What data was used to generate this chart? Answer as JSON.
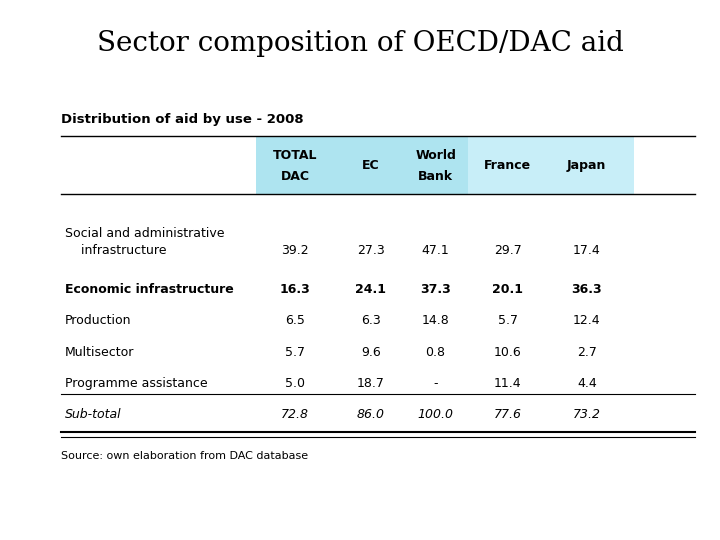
{
  "title": "Sector composition of OECD/DAC aid",
  "subtitle": "Distribution of aid by use - 2008",
  "source": "Source: own elaboration from DAC database",
  "col_headers_line1": [
    "TOTAL",
    "EC",
    "World",
    "France",
    "Japan"
  ],
  "col_headers_line2": [
    "DAC",
    "",
    "Bank",
    "",
    ""
  ],
  "rows": [
    {
      "label_line1": "Social and administrative",
      "label_line2": "    infrastructure",
      "values": [
        "39.2",
        "27.3",
        "47.1",
        "29.7",
        "17.4"
      ],
      "bold": false,
      "italic": false,
      "extra_space_above": true
    },
    {
      "label_line1": "Economic infrastructure",
      "label_line2": "",
      "values": [
        "16.3",
        "24.1",
        "37.3",
        "20.1",
        "36.3"
      ],
      "bold": true,
      "italic": false,
      "extra_space_above": true
    },
    {
      "label_line1": "Production",
      "label_line2": "",
      "values": [
        "6.5",
        "6.3",
        "14.8",
        "5.7",
        "12.4"
      ],
      "bold": false,
      "italic": false,
      "extra_space_above": false
    },
    {
      "label_line1": "Multisector",
      "label_line2": "",
      "values": [
        "5.7",
        "9.6",
        "0.8",
        "10.6",
        "2.7"
      ],
      "bold": false,
      "italic": false,
      "extra_space_above": false
    },
    {
      "label_line1": "Programme assistance",
      "label_line2": "",
      "values": [
        "5.0",
        "18.7",
        "-",
        "11.4",
        "4.4"
      ],
      "bold": false,
      "italic": false,
      "extra_space_above": false
    },
    {
      "label_line1": "Sub-total",
      "label_line2": "",
      "values": [
        "72.8",
        "86.0",
        "100.0",
        "77.6",
        "73.2"
      ],
      "bold": false,
      "italic": true,
      "extra_space_above": false
    }
  ],
  "bg_color": "#ffffff",
  "title_fontsize": 20,
  "subtitle_fontsize": 9.5,
  "header_fontsize": 9,
  "data_fontsize": 9,
  "source_fontsize": 8,
  "line_color": "#000000",
  "header_bg": "#aee4f0",
  "header_bg2": "#c8eef8"
}
